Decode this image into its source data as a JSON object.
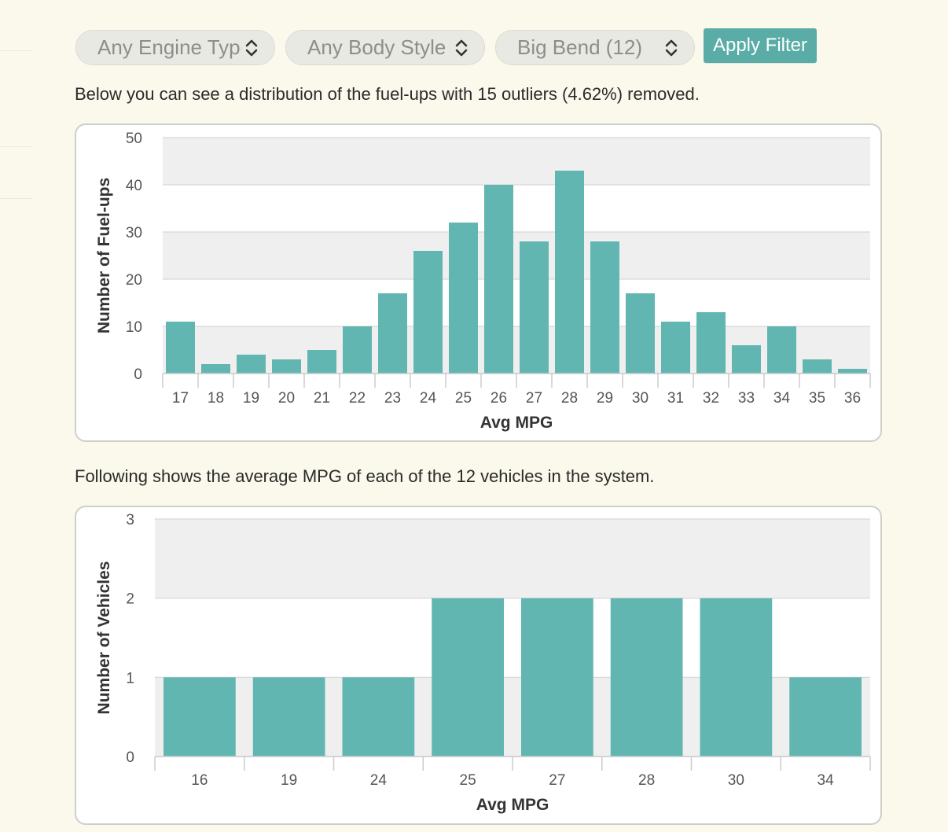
{
  "filters": {
    "engine_type": "Any Engine Type",
    "body_style": "Any Body Style",
    "location": "Big Bend (12)",
    "apply_label": "Apply Filter"
  },
  "colors": {
    "bar": "#62b6b2",
    "button": "#5aada6",
    "background": "#faf9ec",
    "plot_band": "#efefef"
  },
  "icons": {
    "select_arrows": "chevron-up-down-icon"
  },
  "descriptions": {
    "fuelups": "Below you can see a distribution of the fuel-ups with 15 outliers (4.62%) removed.",
    "vehicles": "Following shows the average MPG of each of the 12 vehicles in the system."
  },
  "chart_data": [
    {
      "type": "bar",
      "categories": [
        "17",
        "18",
        "19",
        "20",
        "21",
        "22",
        "23",
        "24",
        "25",
        "26",
        "27",
        "28",
        "29",
        "30",
        "31",
        "32",
        "33",
        "34",
        "35",
        "36"
      ],
      "values": [
        11,
        2,
        4,
        3,
        5,
        10,
        17,
        26,
        32,
        40,
        28,
        43,
        28,
        17,
        11,
        13,
        6,
        10,
        3,
        1
      ],
      "xlabel": "Avg MPG",
      "ylabel": "Number of Fuel-ups",
      "ylim": [
        0,
        50
      ],
      "yticks": [
        0,
        10,
        20,
        30,
        40,
        50
      ],
      "grid": true
    },
    {
      "type": "bar",
      "categories": [
        "16",
        "19",
        "24",
        "25",
        "27",
        "28",
        "30",
        "34"
      ],
      "values": [
        1,
        1,
        1,
        2,
        2,
        2,
        2,
        1
      ],
      "xlabel": "Avg MPG",
      "ylabel": "Number of Vehicles",
      "ylim": [
        0,
        3
      ],
      "yticks": [
        0,
        1,
        2,
        3
      ],
      "grid": true
    }
  ]
}
